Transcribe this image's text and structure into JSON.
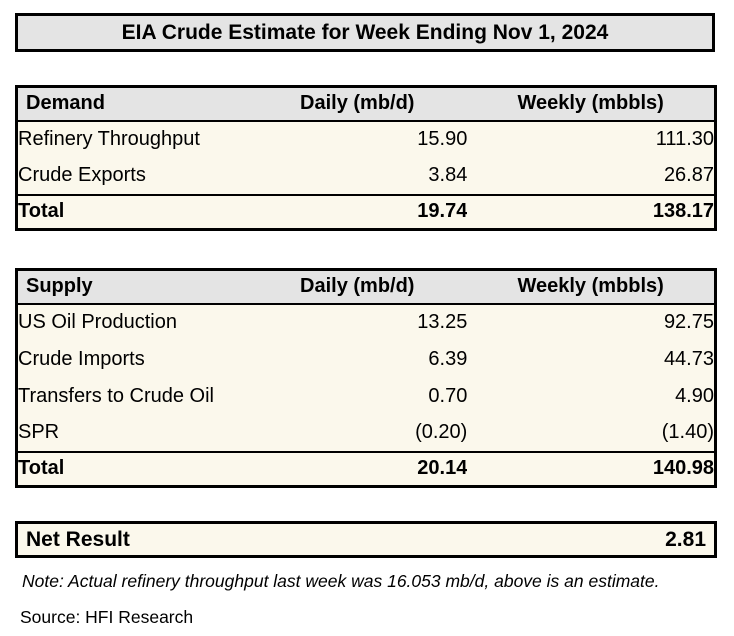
{
  "title": "EIA Crude Estimate for Week Ending Nov 1, 2024",
  "demand_table": {
    "col_item": "Demand",
    "col_daily": "Daily (mb/d)",
    "col_weekly": "Weekly (mbbls)",
    "rows": [
      {
        "label": "Refinery Throughput",
        "daily": "15.90",
        "weekly": "111.30"
      },
      {
        "label": "Crude Exports",
        "daily": "3.84",
        "weekly": "26.87"
      }
    ],
    "total": {
      "label": "Total",
      "daily": "19.74",
      "weekly": "138.17"
    }
  },
  "supply_table": {
    "col_item": "Supply",
    "col_daily": "Daily (mb/d)",
    "col_weekly": "Weekly (mbbls)",
    "rows": [
      {
        "label": "US Oil Production",
        "daily": "13.25",
        "weekly": "92.75"
      },
      {
        "label": "Crude Imports",
        "daily": "6.39",
        "weekly": "44.73"
      },
      {
        "label": "Transfers to Crude Oil",
        "daily": "0.70",
        "weekly": "4.90"
      },
      {
        "label": "SPR",
        "daily": "(0.20)",
        "weekly": "(1.40)"
      }
    ],
    "total": {
      "label": "Total",
      "daily": "20.14",
      "weekly": "140.98"
    }
  },
  "net_result": {
    "label": "Net Result",
    "value": "2.81"
  },
  "note": "Note: Actual refinery throughput last week was 16.053 mb/d, above is an estimate.",
  "source": "Source: HFI Research",
  "colors": {
    "header_fill": "#e4e4e4",
    "cell_fill": "#fbf8ec",
    "border": "#000000",
    "text": "#000000",
    "background": "#ffffff"
  },
  "chart_data": [
    {
      "type": "table",
      "title": "Demand",
      "columns": [
        "Demand",
        "Daily (mb/d)",
        "Weekly (mbbls)"
      ],
      "rows": [
        [
          "Refinery Throughput",
          15.9,
          111.3
        ],
        [
          "Crude Exports",
          3.84,
          26.87
        ],
        [
          "Total",
          19.74,
          138.17
        ]
      ]
    },
    {
      "type": "table",
      "title": "Supply",
      "columns": [
        "Supply",
        "Daily (mb/d)",
        "Weekly (mbbls)"
      ],
      "rows": [
        [
          "US Oil Production",
          13.25,
          92.75
        ],
        [
          "Crude Imports",
          6.39,
          44.73
        ],
        [
          "Transfers to Crude Oil",
          0.7,
          4.9
        ],
        [
          "SPR",
          -0.2,
          -1.4
        ],
        [
          "Total",
          20.14,
          140.98
        ]
      ]
    },
    {
      "type": "table",
      "title": "Net Result",
      "columns": [
        "Net Result"
      ],
      "rows": [
        [
          "Net Result",
          2.81
        ]
      ]
    }
  ]
}
